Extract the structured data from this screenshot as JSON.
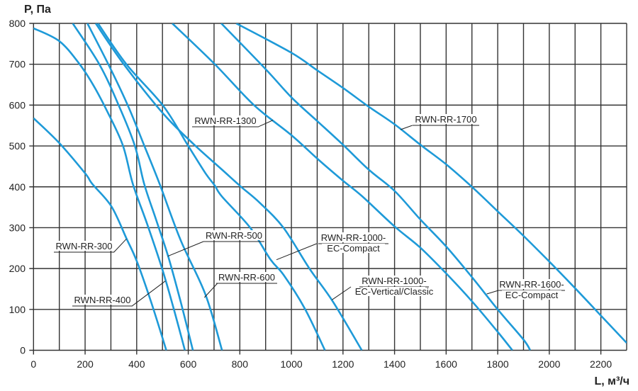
{
  "chart_data": {
    "type": "line",
    "title": "",
    "xlabel": "L, м³/ч",
    "ylabel": "P, Па",
    "xlim": [
      0,
      2300
    ],
    "ylim": [
      0,
      800
    ],
    "x_ticks": [
      0,
      200,
      400,
      600,
      800,
      1000,
      1200,
      1400,
      1600,
      1800,
      2000,
      2200
    ],
    "y_ticks": [
      0,
      100,
      200,
      300,
      400,
      500,
      600,
      700,
      800
    ],
    "grid": true,
    "grid_step_x": 100,
    "grid_step_y": 100,
    "colors": {
      "curve": "#1e9ad8",
      "grid": "#333333"
    },
    "series": [
      {
        "name": "RWN-RR-300",
        "points": [
          [
            0,
            568
          ],
          [
            100,
            507
          ],
          [
            200,
            433
          ],
          [
            228,
            407
          ],
          [
            302,
            352
          ],
          [
            360,
            274
          ],
          [
            401,
            217
          ],
          [
            456,
            118
          ],
          [
            515,
            0
          ]
        ]
      },
      {
        "name": "RWN-RR-400",
        "points": [
          [
            0,
            788
          ],
          [
            99,
            757
          ],
          [
            173,
            705
          ],
          [
            228,
            653
          ],
          [
            283,
            588
          ],
          [
            346,
            502
          ],
          [
            385,
            407
          ],
          [
            440,
            310
          ],
          [
            497,
            203
          ],
          [
            540,
            110
          ],
          [
            587,
            0
          ]
        ]
      },
      {
        "name": "RWN-RR-500",
        "points": [
          [
            152,
            800
          ],
          [
            255,
            700
          ],
          [
            330,
            600
          ],
          [
            393,
            500
          ],
          [
            429,
            407
          ],
          [
            475,
            320
          ],
          [
            522,
            230
          ],
          [
            570,
            120
          ],
          [
            618,
            0
          ]
        ]
      },
      {
        "name": "RWN-RR-600",
        "points": [
          [
            209,
            800
          ],
          [
            290,
            700
          ],
          [
            365,
            600
          ],
          [
            430,
            500
          ],
          [
            489,
            407
          ],
          [
            570,
            270
          ],
          [
            667,
            136
          ],
          [
            731,
            0
          ]
        ]
      },
      {
        "name": "RWN-RR-1000-EC-Compact",
        "points": [
          [
            250,
            800
          ],
          [
            360,
            700
          ],
          [
            503,
            598
          ],
          [
            600,
            500
          ],
          [
            667,
            433
          ],
          [
            703,
            403
          ],
          [
            731,
            376
          ],
          [
            840,
            300
          ],
          [
            919,
            222
          ],
          [
            969,
            185
          ],
          [
            1052,
            102
          ],
          [
            1130,
            0
          ]
        ]
      },
      {
        "name": "RWN-RR-1000-EC-Vertical/Classic",
        "points": [
          [
            241,
            800
          ],
          [
            350,
            700
          ],
          [
            503,
            579
          ],
          [
            620,
            505
          ],
          [
            731,
            442
          ],
          [
            805,
            400
          ],
          [
            877,
            361
          ],
          [
            969,
            300
          ],
          [
            1070,
            200
          ],
          [
            1162,
            118
          ],
          [
            1273,
            0
          ]
        ]
      },
      {
        "name": "RWN-RR-1300",
        "points": [
          [
            538,
            800
          ],
          [
            700,
            702
          ],
          [
            855,
            600
          ],
          [
            1001,
            526
          ],
          [
            1102,
            468
          ],
          [
            1198,
            416
          ],
          [
            1276,
            376
          ],
          [
            1400,
            303
          ],
          [
            1500,
            251
          ],
          [
            1600,
            188
          ],
          [
            1700,
            120
          ],
          [
            1800,
            45
          ],
          [
            1857,
            0
          ]
        ]
      },
      {
        "name": "RWN-RR-1600-EC-Compact",
        "points": [
          [
            728,
            800
          ],
          [
            900,
            688
          ],
          [
            1000,
            619
          ],
          [
            1100,
            561
          ],
          [
            1200,
            503
          ],
          [
            1300,
            442
          ],
          [
            1400,
            390
          ],
          [
            1500,
            320
          ],
          [
            1600,
            254
          ],
          [
            1700,
            179
          ],
          [
            1800,
            100
          ],
          [
            1900,
            26
          ],
          [
            1926,
            0
          ]
        ]
      },
      {
        "name": "RWN-RR-1700",
        "points": [
          [
            786,
            800
          ],
          [
            1000,
            728
          ],
          [
            1100,
            685
          ],
          [
            1200,
            642
          ],
          [
            1300,
            596
          ],
          [
            1400,
            553
          ],
          [
            1500,
            503
          ],
          [
            1600,
            455
          ],
          [
            1700,
            400
          ],
          [
            1800,
            340
          ],
          [
            1900,
            280
          ],
          [
            2000,
            217
          ],
          [
            2100,
            152
          ],
          [
            2200,
            85
          ],
          [
            2300,
            18
          ]
        ]
      }
    ],
    "annotations": [
      {
        "series": "RWN-RR-300",
        "lines": [
          "RWN-RR-300"
        ]
      },
      {
        "series": "RWN-RR-400",
        "lines": [
          "RWN-RR-400"
        ]
      },
      {
        "series": "RWN-RR-500",
        "lines": [
          "RWN-RR-500"
        ]
      },
      {
        "series": "RWN-RR-600",
        "lines": [
          "RWN-RR-600"
        ]
      },
      {
        "series": "RWN-RR-1000-EC-Compact",
        "lines": [
          "RWN-RR-1000-",
          "EC-Compact"
        ]
      },
      {
        "series": "RWN-RR-1000-EC-Vertical/Classic",
        "lines": [
          "RWN-RR-1000-",
          "EC-Vertical/Classic"
        ]
      },
      {
        "series": "RWN-RR-1300",
        "lines": [
          "RWN-RR-1300"
        ]
      },
      {
        "series": "RWN-RR-1600-EC-Compact",
        "lines": [
          "RWN-RR-1600-",
          "EC-Compact"
        ]
      },
      {
        "series": "RWN-RR-1700",
        "lines": [
          "RWN-RR-1700"
        ]
      }
    ]
  }
}
